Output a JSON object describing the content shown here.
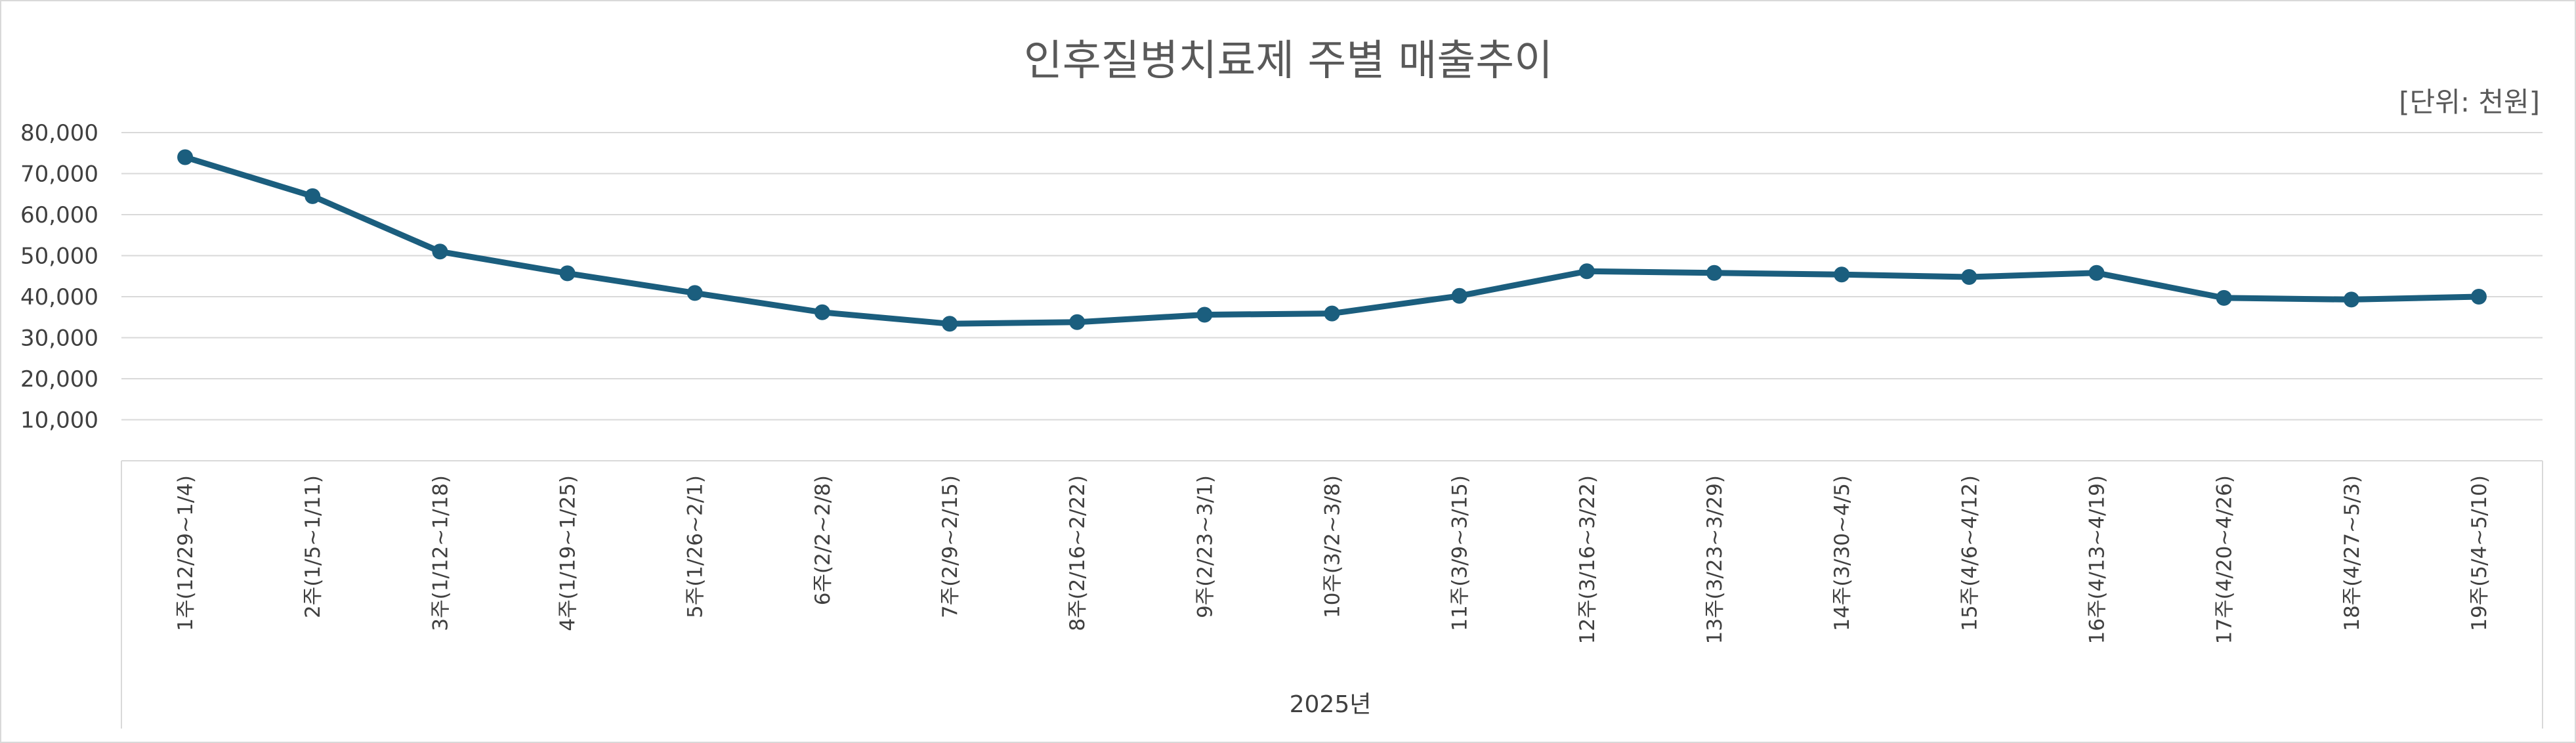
{
  "chart_data": {
    "type": "line",
    "title": "인후질병치료제 주별 매출추이",
    "unit_note": "[단위: 천원]",
    "xlabel": "2025년",
    "ylabel": "",
    "ylim": [
      0,
      80000
    ],
    "y_ticks": [
      10000,
      20000,
      30000,
      40000,
      50000,
      60000,
      70000,
      80000
    ],
    "y_tick_labels": [
      "10,000",
      "20,000",
      "30,000",
      "40,000",
      "50,000",
      "60,000",
      "70,000",
      "80,000"
    ],
    "grid": true,
    "legend": "none",
    "categories": [
      "1주(12/29~1/4)",
      "2주(1/5~1/11)",
      "3주(1/12~1/18)",
      "4주(1/19~1/25)",
      "5주(1/26~2/1)",
      "6주(2/2~2/8)",
      "7주(2/9~2/15)",
      "8주(2/16~2/22)",
      "9주(2/23~3/1)",
      "10주(3/2~3/8)",
      "11주(3/9~3/15)",
      "12주(3/16~3/22)",
      "13주(3/23~3/29)",
      "14주(3/30~4/5)",
      "15주(4/6~4/12)",
      "16주(4/13~4/19)",
      "17주(4/20~4/26)",
      "18주(4/27~5/3)",
      "19주(5/4~5/10)"
    ],
    "series": [
      {
        "color": "#1b5e7e",
        "values": [
          74000,
          64500,
          51000,
          45700,
          40900,
          36200,
          33400,
          33800,
          35600,
          35900,
          40200,
          46200,
          45800,
          45400,
          44800,
          45800,
          39700,
          39300,
          40000
        ]
      }
    ]
  }
}
